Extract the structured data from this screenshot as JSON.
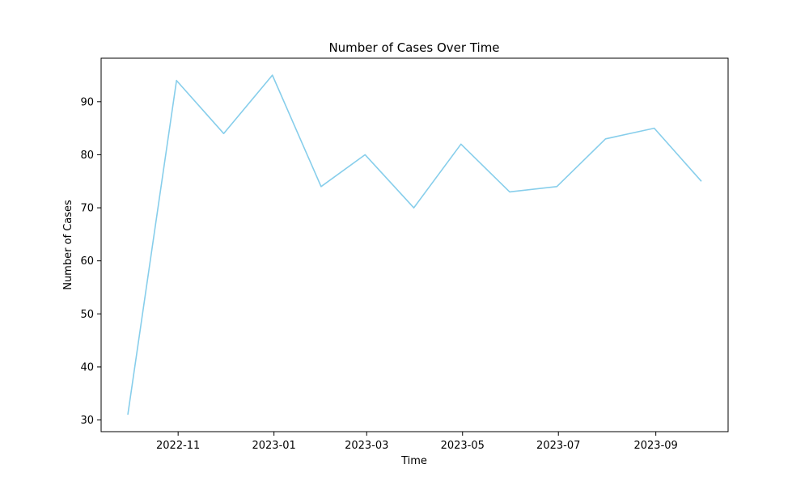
{
  "chart_data": {
    "type": "line",
    "title": "Number of Cases Over Time",
    "xlabel": "Time",
    "ylabel": "Number of Cases",
    "x": [
      "2022-09-30",
      "2022-10-31",
      "2022-11-30",
      "2022-12-31",
      "2023-01-31",
      "2023-02-28",
      "2023-03-31",
      "2023-04-30",
      "2023-05-31",
      "2023-06-30",
      "2023-07-31",
      "2023-08-31",
      "2023-09-30"
    ],
    "series": [
      {
        "values": [
          31,
          94,
          84,
          95,
          74,
          80,
          70,
          82,
          73,
          74,
          83,
          85,
          75
        ]
      }
    ],
    "x_ticks": [
      {
        "date": "2022-11-01",
        "label": "2022-11"
      },
      {
        "date": "2023-01-01",
        "label": "2023-01"
      },
      {
        "date": "2023-03-01",
        "label": "2023-03"
      },
      {
        "date": "2023-05-01",
        "label": "2023-05"
      },
      {
        "date": "2023-07-01",
        "label": "2023-07"
      },
      {
        "date": "2023-09-01",
        "label": "2023-09"
      }
    ],
    "y_ticks": [
      30,
      40,
      50,
      60,
      70,
      80,
      90
    ],
    "xlim": [
      "2022-09-13",
      "2023-10-17"
    ],
    "ylim": [
      27.8,
      98.2
    ],
    "grid": false,
    "line_color": "#87ceeb",
    "axis_color": "#000000"
  }
}
